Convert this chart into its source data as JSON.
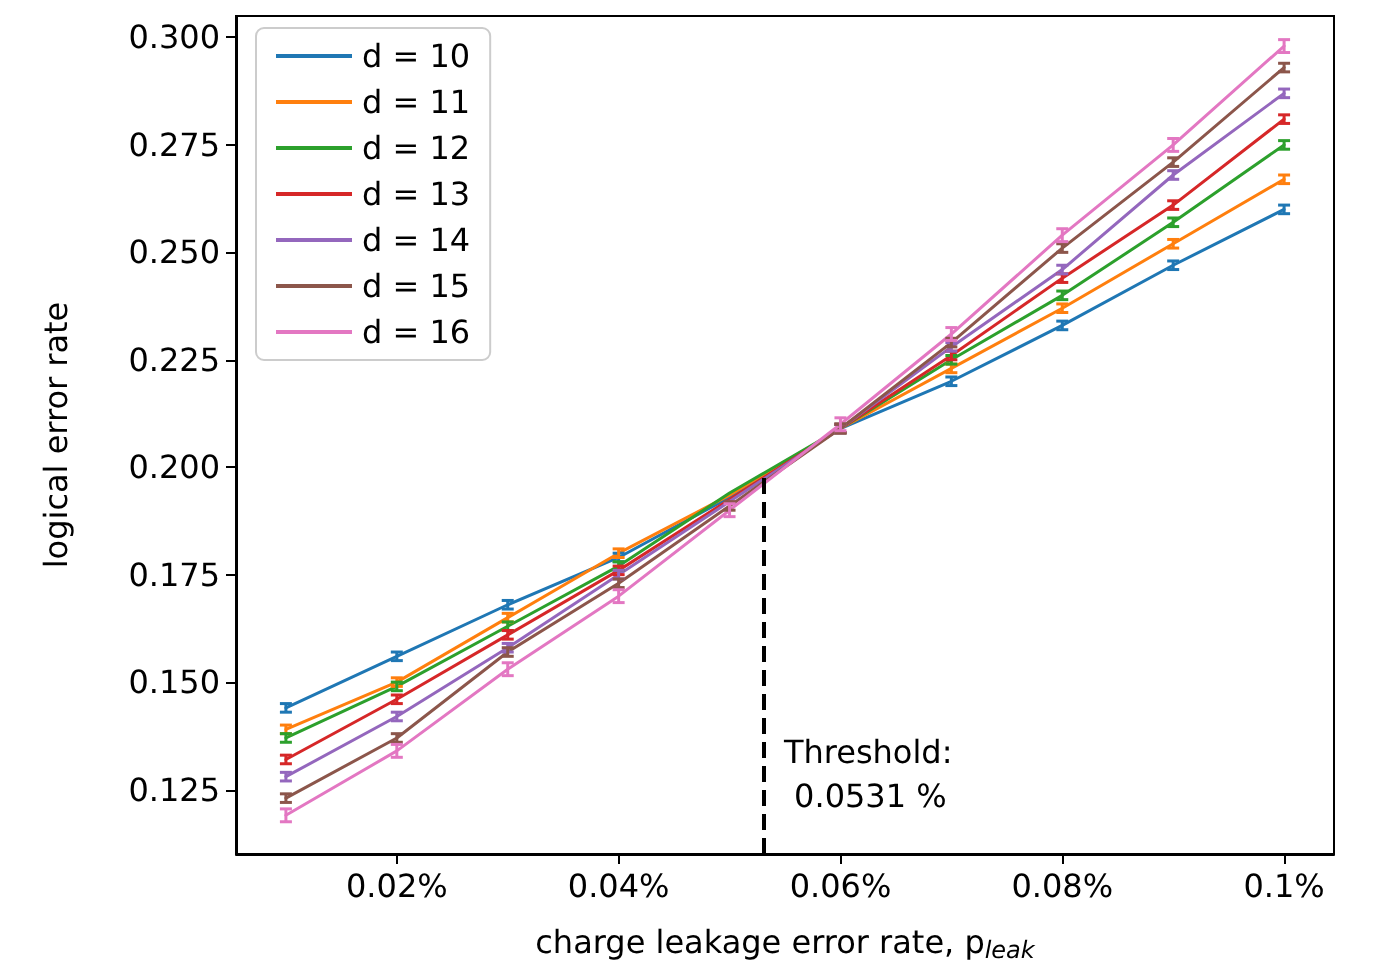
{
  "chart_data": {
    "type": "line",
    "xlabel": "charge leakage error rate, p$_{leak}$",
    "ylabel": "logical error rate",
    "x": [
      0.01,
      0.02,
      0.03,
      0.04,
      0.05,
      0.06,
      0.07,
      0.08,
      0.09,
      0.1
    ],
    "series": [
      {
        "name": "d = 10",
        "color": "#1f77b4",
        "values": [
          0.144,
          0.156,
          0.168,
          0.179,
          0.193,
          0.209,
          0.22,
          0.233,
          0.247,
          0.26
        ],
        "errors": [
          0.001,
          0.001,
          0.001,
          0.001,
          null,
          0.001,
          0.001,
          0.001,
          0.001,
          0.001
        ]
      },
      {
        "name": "d = 11",
        "color": "#ff7f0e",
        "values": [
          0.139,
          0.15,
          0.165,
          0.18,
          0.1935,
          0.209,
          0.223,
          0.237,
          0.252,
          0.267
        ],
        "errors": [
          0.001,
          0.001,
          0.001,
          0.001,
          null,
          0.001,
          0.001,
          0.001,
          0.001,
          0.001
        ]
      },
      {
        "name": "d = 12",
        "color": "#2ca02c",
        "values": [
          0.137,
          0.149,
          0.163,
          0.177,
          0.194,
          0.209,
          0.225,
          0.24,
          0.257,
          0.275
        ],
        "errors": [
          0.001,
          0.001,
          0.001,
          0.001,
          null,
          0.001,
          0.001,
          0.001,
          0.001,
          0.001
        ]
      },
      {
        "name": "d = 13",
        "color": "#d62728",
        "values": [
          0.132,
          0.146,
          0.161,
          0.176,
          0.1925,
          0.209,
          0.226,
          0.244,
          0.261,
          0.281
        ],
        "errors": [
          0.001,
          0.001,
          0.001,
          0.001,
          null,
          0.001,
          0.001,
          0.001,
          0.001,
          0.001
        ]
      },
      {
        "name": "d = 14",
        "color": "#9467bd",
        "values": [
          0.128,
          0.142,
          0.158,
          0.175,
          0.192,
          0.209,
          0.228,
          0.246,
          0.268,
          0.287
        ],
        "errors": [
          0.001,
          0.001,
          0.001,
          0.001,
          null,
          0.001,
          0.001,
          0.001,
          0.001,
          0.001
        ]
      },
      {
        "name": "d = 15",
        "color": "#8c564b",
        "values": [
          0.123,
          0.137,
          0.157,
          0.173,
          0.191,
          0.209,
          0.229,
          0.251,
          0.271,
          0.293
        ],
        "errors": [
          0.001,
          0.001,
          0.001,
          0.001,
          0.001,
          0.001,
          0.001,
          0.001,
          0.001,
          0.001
        ]
      },
      {
        "name": "d = 16",
        "color": "#e377c2",
        "values": [
          0.119,
          0.134,
          0.153,
          0.17,
          0.19,
          0.21,
          0.231,
          0.254,
          0.275,
          0.298
        ],
        "errors": [
          0.0015,
          0.0015,
          0.0015,
          0.0015,
          0.0015,
          0.0015,
          0.0015,
          0.0015,
          0.0015,
          0.0015
        ]
      }
    ],
    "xlim": [
      0.0055,
      0.1045
    ],
    "xticks": [
      {
        "value": 0.02,
        "label": "0.02%"
      },
      {
        "value": 0.04,
        "label": "0.04%"
      },
      {
        "value": 0.06,
        "label": "0.06%"
      },
      {
        "value": 0.08,
        "label": "0.08%"
      },
      {
        "value": 0.1,
        "label": "0.1%"
      }
    ],
    "ylim": [
      0.11,
      0.305
    ],
    "yticks": [
      0.125,
      {
        "value": 0.15,
        "label": "0.150"
      },
      0.175,
      {
        "value": 0.2,
        "label": "0.200"
      },
      0.225,
      {
        "value": 0.25,
        "label": "0.250"
      },
      0.275,
      {
        "value": 0.3,
        "label": "0.300"
      }
    ],
    "ref_lines": [
      {
        "axis": "x",
        "value": 0.0531,
        "label": "Threshold:\n 0.0531 %",
        "color": "#000000",
        "line_style": "dashed"
      }
    ],
    "grid": false,
    "legend": "top left",
    "marker": "none",
    "line_style": "solid"
  }
}
